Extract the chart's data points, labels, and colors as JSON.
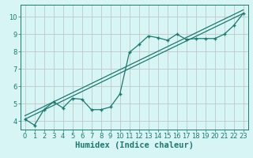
{
  "xlabel": "Humidex (Indice chaleur)",
  "bg_color": "#d8f5f5",
  "grid_color": "#c0c8c8",
  "line_color": "#1a7a6e",
  "xlim": [
    -0.5,
    23.5
  ],
  "ylim": [
    3.5,
    10.7
  ],
  "xticks": [
    0,
    1,
    2,
    3,
    4,
    5,
    6,
    7,
    8,
    9,
    10,
    11,
    12,
    13,
    14,
    15,
    16,
    17,
    18,
    19,
    20,
    21,
    22,
    23
  ],
  "yticks": [
    4,
    5,
    6,
    7,
    8,
    9,
    10
  ],
  "data_x": [
    0,
    1,
    2,
    3,
    4,
    5,
    6,
    7,
    8,
    9,
    10,
    11,
    12,
    13,
    14,
    15,
    16,
    17,
    18,
    19,
    20,
    21,
    22,
    23
  ],
  "data_y": [
    4.1,
    3.75,
    4.65,
    5.1,
    4.75,
    5.3,
    5.25,
    4.65,
    4.65,
    4.8,
    5.55,
    7.95,
    8.4,
    8.9,
    8.8,
    8.65,
    9.0,
    8.7,
    8.75,
    8.75,
    8.75,
    9.0,
    9.5,
    10.2
  ],
  "reg_x0": 0,
  "reg_x1": 23,
  "reg_y0": 4.1,
  "reg_y1": 10.2,
  "reg2_y0": 4.3,
  "reg2_y1": 10.4,
  "marker_size": 3.5,
  "linewidth": 0.9,
  "tick_fontsize": 6.0,
  "xlabel_fontsize": 7.5
}
